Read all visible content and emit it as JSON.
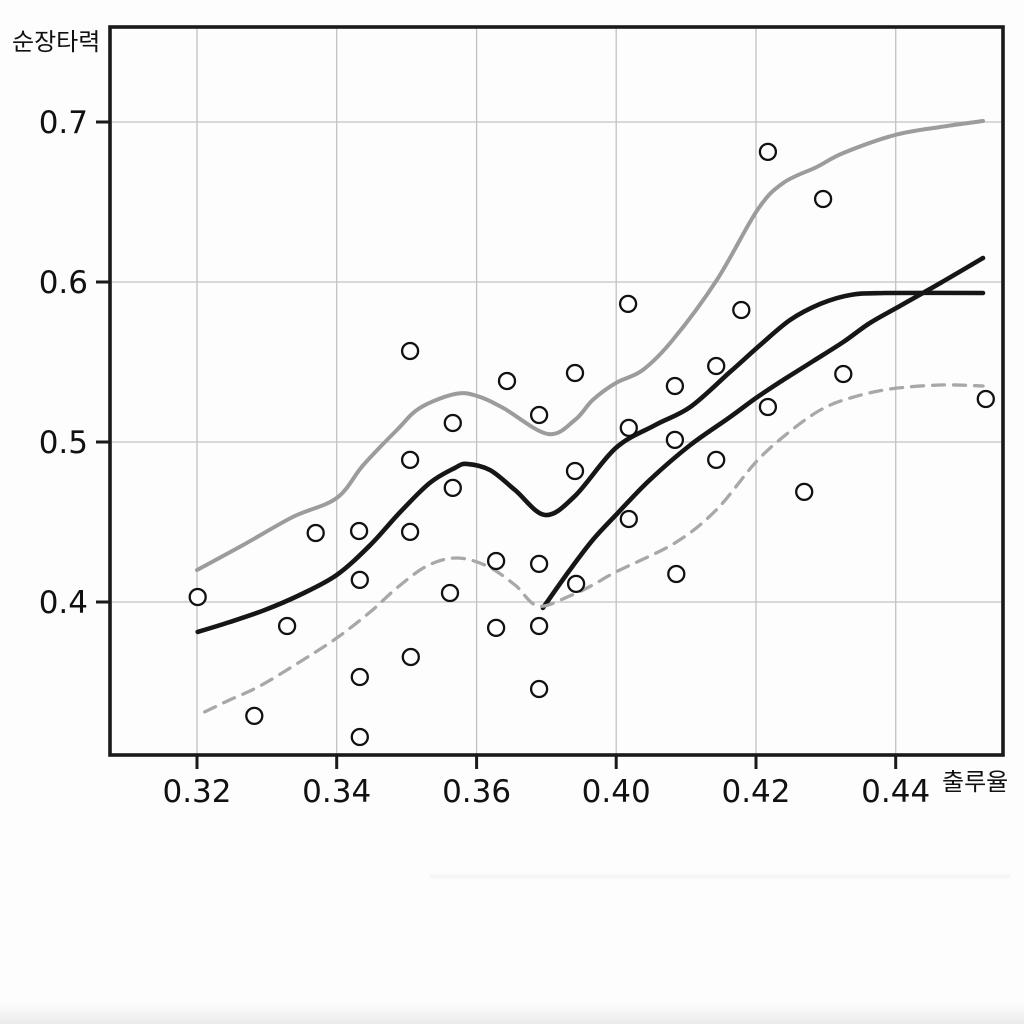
{
  "chart_data": {
    "type": "scatter",
    "title": "",
    "xlabel": "출루율",
    "ylabel": "순장타력",
    "x_tick_values": [
      0.32,
      0.34,
      0.36,
      0.4,
      0.42,
      0.44
    ],
    "x_tick_labels": [
      "0.32",
      "0.34",
      "0.36",
      "0.40",
      "0.42",
      "0.44"
    ],
    "y_tick_values": [
      0.4,
      0.5,
      0.6,
      0.7
    ],
    "y_tick_labels": [
      "0.4",
      "0.5",
      "0.6",
      "0.7"
    ],
    "xlim": [
      0.3075,
      0.4554
    ],
    "ylim": [
      0.304,
      0.759
    ],
    "grid": true,
    "marker": "open-circle",
    "colors": {
      "frame": "#1a1a1a",
      "gridline": "#c2c2c2",
      "black_curve": "#161616",
      "gray_curve": "#9c9c9c",
      "dashed_curve": "#a8a8a8",
      "marker_stroke": "#111111",
      "marker_fill": "#ffffff"
    },
    "points": [
      [
        0.3201,
        0.4031
      ],
      [
        0.3282,
        0.3288
      ],
      [
        0.3329,
        0.385
      ],
      [
        0.337,
        0.4431
      ],
      [
        0.3432,
        0.4444
      ],
      [
        0.3433,
        0.4138
      ],
      [
        0.3433,
        0.3531
      ],
      [
        0.3433,
        0.3156
      ],
      [
        0.3505,
        0.5569
      ],
      [
        0.3505,
        0.4888
      ],
      [
        0.3505,
        0.4438
      ],
      [
        0.3506,
        0.3656
      ],
      [
        0.3566,
        0.5119
      ],
      [
        0.3562,
        0.4056
      ],
      [
        0.3566,
        0.4713
      ],
      [
        0.3656,
        0.4256
      ],
      [
        0.3656,
        0.3838
      ],
      [
        0.3687,
        0.5381
      ],
      [
        0.3779,
        0.5169
      ],
      [
        0.3779,
        0.4238
      ],
      [
        0.3779,
        0.385
      ],
      [
        0.3779,
        0.3456
      ],
      [
        0.3882,
        0.5431
      ],
      [
        0.3882,
        0.4819
      ],
      [
        0.3885,
        0.4113
      ],
      [
        0.4017,
        0.5863
      ],
      [
        0.4018,
        0.5088
      ],
      [
        0.4018,
        0.4519
      ],
      [
        0.4084,
        0.535
      ],
      [
        0.4084,
        0.5013
      ],
      [
        0.4086,
        0.4175
      ],
      [
        0.4143,
        0.5475
      ],
      [
        0.4143,
        0.4888
      ],
      [
        0.4179,
        0.5825
      ],
      [
        0.4217,
        0.6813
      ],
      [
        0.4217,
        0.5219
      ],
      [
        0.4269,
        0.4688
      ],
      [
        0.4296,
        0.6519
      ],
      [
        0.4325,
        0.5425
      ],
      [
        0.4529,
        0.5269
      ]
    ],
    "series": [
      {
        "name": "upper-gray-solid-smooth",
        "style": "solid",
        "color": "#9c9c9c",
        "width": 4,
        "points": [
          [
            0.32,
            0.42
          ],
          [
            0.3266,
            0.4356
          ],
          [
            0.3337,
            0.4531
          ],
          [
            0.34,
            0.465
          ],
          [
            0.3438,
            0.4856
          ],
          [
            0.3486,
            0.5075
          ],
          [
            0.3519,
            0.5213
          ],
          [
            0.3569,
            0.53
          ],
          [
            0.3601,
            0.5288
          ],
          [
            0.3676,
            0.5213
          ],
          [
            0.3804,
            0.505
          ],
          [
            0.3882,
            0.5138
          ],
          [
            0.3933,
            0.5263
          ],
          [
            0.3999,
            0.5369
          ],
          [
            0.4038,
            0.545
          ],
          [
            0.4081,
            0.5638
          ],
          [
            0.4144,
            0.6013
          ],
          [
            0.4202,
            0.645
          ],
          [
            0.4239,
            0.6619
          ],
          [
            0.4287,
            0.6719
          ],
          [
            0.4325,
            0.6806
          ],
          [
            0.4399,
            0.6919
          ],
          [
            0.4464,
            0.6969
          ],
          [
            0.4525,
            0.7006
          ]
        ]
      },
      {
        "name": "black-solid-smooth-full",
        "style": "solid",
        "color": "#161616",
        "width": 4.6,
        "points": [
          [
            0.3201,
            0.3813
          ],
          [
            0.3247,
            0.3875
          ],
          [
            0.3297,
            0.395
          ],
          [
            0.3347,
            0.4044
          ],
          [
            0.34,
            0.4169
          ],
          [
            0.3448,
            0.4356
          ],
          [
            0.3491,
            0.4563
          ],
          [
            0.3533,
            0.4744
          ],
          [
            0.3569,
            0.4838
          ],
          [
            0.3586,
            0.4863
          ],
          [
            0.3638,
            0.4825
          ],
          [
            0.371,
            0.47
          ],
          [
            0.3796,
            0.4544
          ],
          [
            0.3882,
            0.4663
          ],
          [
            0.3999,
            0.4963
          ],
          [
            0.4056,
            0.5106
          ],
          [
            0.4106,
            0.5219
          ],
          [
            0.4163,
            0.5438
          ],
          [
            0.4206,
            0.5606
          ],
          [
            0.4249,
            0.5763
          ],
          [
            0.4292,
            0.5863
          ],
          [
            0.4335,
            0.5919
          ],
          [
            0.4385,
            0.5931
          ],
          [
            0.4525,
            0.5931
          ]
        ]
      },
      {
        "name": "black-solid-smooth-right-half",
        "style": "solid",
        "color": "#161616",
        "width": 4.6,
        "points": [
          [
            0.379,
            0.3963
          ],
          [
            0.3867,
            0.42
          ],
          [
            0.3933,
            0.4388
          ],
          [
            0.3999,
            0.4544
          ],
          [
            0.4048,
            0.4763
          ],
          [
            0.4106,
            0.4981
          ],
          [
            0.4163,
            0.5156
          ],
          [
            0.42,
            0.5275
          ],
          [
            0.4239,
            0.5388
          ],
          [
            0.4282,
            0.5506
          ],
          [
            0.4325,
            0.5625
          ],
          [
            0.4363,
            0.5744
          ],
          [
            0.4406,
            0.585
          ],
          [
            0.4464,
            0.5994
          ],
          [
            0.4525,
            0.615
          ]
        ]
      },
      {
        "name": "lower-gray-dashed-smooth",
        "style": "dashed",
        "color": "#a8a8a8",
        "width": 3.3,
        "dash": [
          12,
          9
        ],
        "points": [
          [
            0.3211,
            0.3313
          ],
          [
            0.3247,
            0.3388
          ],
          [
            0.329,
            0.3475
          ],
          [
            0.3347,
            0.3625
          ],
          [
            0.34,
            0.3775
          ],
          [
            0.3448,
            0.3938
          ],
          [
            0.3486,
            0.4088
          ],
          [
            0.3529,
            0.4225
          ],
          [
            0.3571,
            0.4275
          ],
          [
            0.363,
            0.4225
          ],
          [
            0.371,
            0.4106
          ],
          [
            0.3776,
            0.3975
          ],
          [
            0.3867,
            0.4038
          ],
          [
            0.3933,
            0.4106
          ],
          [
            0.3999,
            0.4188
          ],
          [
            0.4084,
            0.4369
          ],
          [
            0.4143,
            0.4575
          ],
          [
            0.42,
            0.4875
          ],
          [
            0.4244,
            0.505
          ],
          [
            0.4292,
            0.52
          ],
          [
            0.4335,
            0.5275
          ],
          [
            0.4392,
            0.5331
          ],
          [
            0.4464,
            0.5356
          ],
          [
            0.4525,
            0.535
          ]
        ]
      }
    ]
  }
}
